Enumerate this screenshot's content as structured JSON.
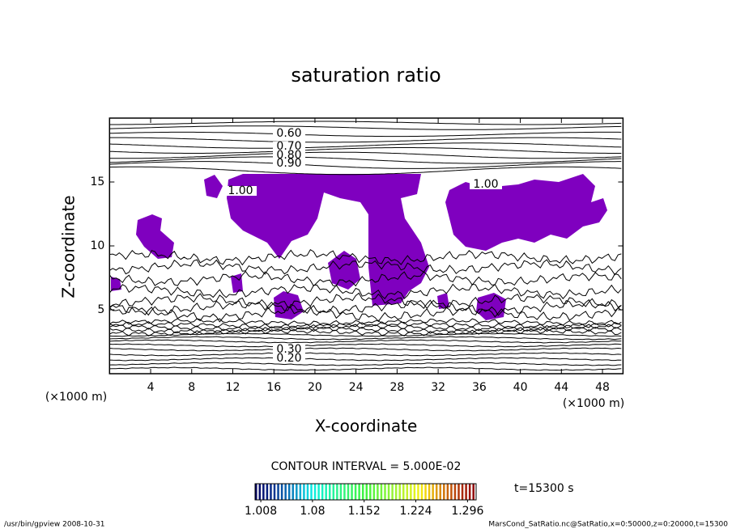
{
  "chart_data": {
    "type": "contour",
    "title": "saturation ratio",
    "x_label": "X-coordinate",
    "y_label": "Z-coordinate",
    "x_unit": "(×1000 m)",
    "y_unit": "(×1000 m)",
    "xlim": [
      0,
      50
    ],
    "ylim": [
      0,
      20
    ],
    "xticks": [
      4,
      8,
      12,
      16,
      20,
      24,
      28,
      32,
      36,
      40,
      44,
      48
    ],
    "yticks": [
      5,
      10,
      15
    ],
    "fill_color": "#7f00bf",
    "contour_labels": [
      {
        "value": 0.6,
        "label": "0.60"
      },
      {
        "value": 0.7,
        "label": "0.70"
      },
      {
        "value": 0.8,
        "label": "0.80"
      },
      {
        "value": 0.9,
        "label": "0.90"
      },
      {
        "value": 1.0,
        "label": "1.00"
      },
      {
        "value": 1.0,
        "label": "1.00"
      },
      {
        "value": 0.3,
        "label": "0.30"
      },
      {
        "value": 0.2,
        "label": "0.20"
      }
    ],
    "contour_interval": "CONTOUR INTERVAL = 5.000E-02",
    "time_label": "t=15300 s",
    "colorbar": {
      "clim": [
        1.0,
        1.308
      ],
      "ticks": [
        1.008,
        1.08,
        1.152,
        1.224,
        1.296
      ]
    },
    "footer_left": "/usr/bin/gpview  2008-10-31",
    "footer_right": "MarsCond_SatRatio.nc@SatRatio,x=0:50000,z=0:20000,t=15300"
  }
}
